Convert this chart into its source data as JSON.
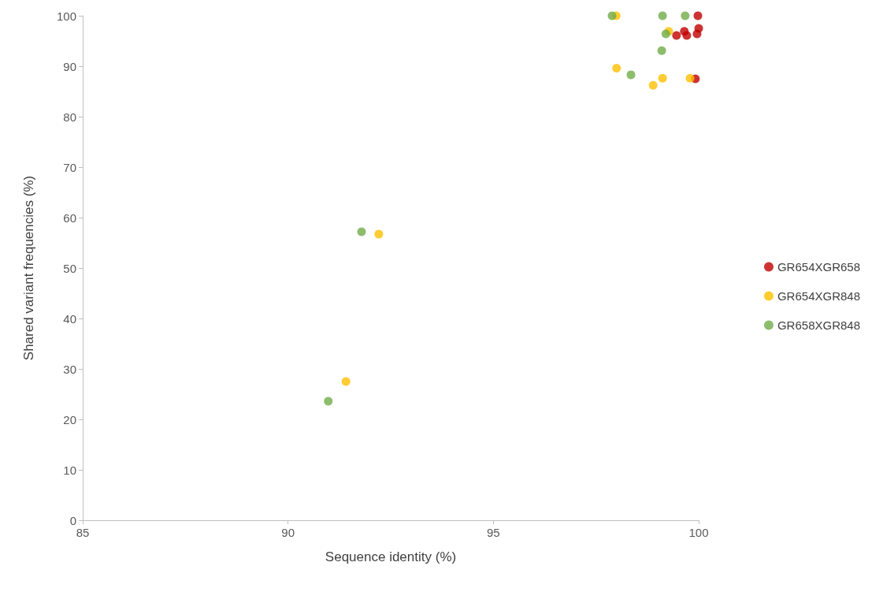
{
  "chart_data": {
    "type": "scatter",
    "xlabel": "Sequence identity (%)",
    "ylabel": "Shared variant frequencies (%)",
    "xlim": [
      85,
      100
    ],
    "xticks": [
      85,
      90,
      95,
      100
    ],
    "ylim": [
      0,
      100
    ],
    "yticks": [
      0,
      10,
      20,
      30,
      40,
      50,
      60,
      70,
      80,
      90,
      100
    ],
    "grid": false,
    "legend": "right",
    "marker": "circle",
    "series": [
      {
        "name": "GR654XGR658",
        "color": "#c00000",
        "x": [
          99.98,
          100,
          99.46,
          99.65,
          99.71,
          99.96,
          99.92
        ],
        "values": [
          100,
          97.5,
          96.1,
          96.9,
          96.1,
          96.4,
          87.5
        ]
      },
      {
        "name": "GR654XGR848",
        "color": "#ffc000",
        "x": [
          97.99,
          99.27,
          98,
          98.89,
          99.12,
          99.79,
          92.21,
          91.41
        ],
        "values": [
          100,
          96.9,
          89.6,
          86.2,
          87.6,
          87.6,
          56.7,
          27.5
        ]
      },
      {
        "name": "GR658XGR848",
        "color": "#70ad47",
        "x": [
          97.89,
          99.12,
          99.67,
          99.2,
          99.1,
          98.35,
          91.79,
          90.98
        ],
        "values": [
          100,
          100,
          100,
          96.4,
          93.1,
          88.3,
          57.2,
          23.6
        ]
      }
    ]
  }
}
